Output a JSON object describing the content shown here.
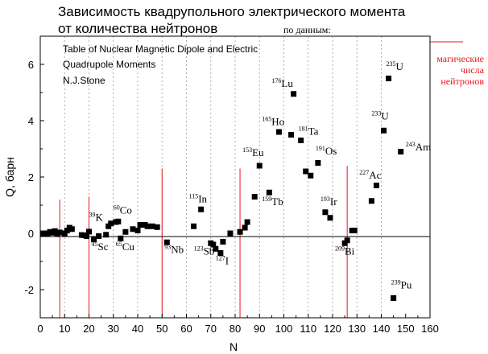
{
  "chart_data": {
    "type": "scatter",
    "title_lines": [
      "Зависимость квадрупольного электрического момента",
      "от количества нейтронов"
    ],
    "source_prefix": "по данным:",
    "source_lines": [
      "Table of Nuclear Magnetic Dipole and Electric",
      "Quadrupole Moments",
      "N.J.Stone"
    ],
    "xlabel": "N",
    "ylabel": "Q, барн",
    "xlim": [
      0,
      160
    ],
    "ylim": [
      -3,
      7
    ],
    "x_ticks": [
      0,
      10,
      20,
      30,
      40,
      50,
      60,
      70,
      80,
      90,
      100,
      110,
      120,
      130,
      140,
      150,
      160
    ],
    "y_ticks": [
      -2,
      0,
      2,
      4,
      6
    ],
    "grid_x": [
      10,
      20,
      30,
      40,
      50,
      60,
      70,
      80,
      90,
      100,
      110,
      120,
      130,
      140
    ],
    "magic_numbers": [
      8,
      20,
      50,
      82,
      126
    ],
    "magic_label_lines": [
      "магические",
      "числа",
      "нейтронов"
    ],
    "colors": {
      "points": "#000000",
      "magic": "#e8141e",
      "grid": "#9a9a9a",
      "text": "#000000"
    },
    "points": [
      {
        "x": 1,
        "y": 0.0
      },
      {
        "x": 2,
        "y": 0.0
      },
      {
        "x": 3,
        "y": -0.02
      },
      {
        "x": 4,
        "y": 0.05
      },
      {
        "x": 5,
        "y": 0.02
      },
      {
        "x": 6,
        "y": 0.08
      },
      {
        "x": 7,
        "y": 0.0
      },
      {
        "x": 8,
        "y": 0.03
      },
      {
        "x": 10,
        "y": 0.0
      },
      {
        "x": 11,
        "y": 0.1
      },
      {
        "x": 12,
        "y": 0.2
      },
      {
        "x": 13,
        "y": 0.15
      },
      {
        "x": 17,
        "y": -0.06
      },
      {
        "x": 18,
        "y": -0.07
      },
      {
        "x": 19,
        "y": -0.1
      },
      {
        "x": 20,
        "y": 0.06
      },
      {
        "x": 22,
        "y": -0.22
      },
      {
        "x": 24,
        "y": -0.1
      },
      {
        "x": 27,
        "y": -0.05
      },
      {
        "x": 28,
        "y": 0.25
      },
      {
        "x": 29,
        "y": 0.35
      },
      {
        "x": 31,
        "y": 0.4
      },
      {
        "x": 32,
        "y": 0.42
      },
      {
        "x": 33,
        "y": -0.18
      },
      {
        "x": 35,
        "y": 0.05
      },
      {
        "x": 38,
        "y": 0.15
      },
      {
        "x": 40,
        "y": 0.1
      },
      {
        "x": 41,
        "y": 0.3
      },
      {
        "x": 43,
        "y": 0.3
      },
      {
        "x": 44,
        "y": 0.25
      },
      {
        "x": 46,
        "y": 0.25
      },
      {
        "x": 48,
        "y": 0.22
      },
      {
        "x": 52,
        "y": -0.32
      },
      {
        "x": 63,
        "y": 0.25
      },
      {
        "x": 66,
        "y": 0.85
      },
      {
        "x": 70,
        "y": -0.35
      },
      {
        "x": 71,
        "y": -0.4
      },
      {
        "x": 72,
        "y": -0.55
      },
      {
        "x": 74,
        "y": -0.7
      },
      {
        "x": 75,
        "y": -0.3
      },
      {
        "x": 78,
        "y": 0.0
      },
      {
        "x": 82,
        "y": 0.05
      },
      {
        "x": 84,
        "y": 0.2
      },
      {
        "x": 85,
        "y": 0.4
      },
      {
        "x": 88,
        "y": 1.3
      },
      {
        "x": 90,
        "y": 2.4
      },
      {
        "x": 94,
        "y": 1.45
      },
      {
        "x": 98,
        "y": 3.6
      },
      {
        "x": 103,
        "y": 3.5
      },
      {
        "x": 104,
        "y": 4.95
      },
      {
        "x": 107,
        "y": 3.3
      },
      {
        "x": 109,
        "y": 2.2
      },
      {
        "x": 111,
        "y": 2.05
      },
      {
        "x": 114,
        "y": 2.5
      },
      {
        "x": 117,
        "y": 0.75
      },
      {
        "x": 119,
        "y": 0.55
      },
      {
        "x": 125,
        "y": -0.35
      },
      {
        "x": 126,
        "y": -0.25
      },
      {
        "x": 128,
        "y": 0.1
      },
      {
        "x": 129,
        "y": 0.1
      },
      {
        "x": 136,
        "y": 1.15
      },
      {
        "x": 138,
        "y": 1.7
      },
      {
        "x": 141,
        "y": 3.65
      },
      {
        "x": 143,
        "y": 5.5
      },
      {
        "x": 145,
        "y": -2.3
      },
      {
        "x": 148,
        "y": 2.9
      }
    ],
    "annotations": [
      {
        "mass": "39",
        "symbol": "K",
        "x": 20,
        "y": 0.45
      },
      {
        "mass": "45",
        "symbol": "Sc",
        "x": 21,
        "y": -0.6
      },
      {
        "mass": "60",
        "symbol": "Co",
        "x": 30,
        "y": 0.7
      },
      {
        "mass": "65",
        "symbol": "Cu",
        "x": 31,
        "y": -0.6
      },
      {
        "mass": "93",
        "symbol": "Nb",
        "x": 51,
        "y": -0.7
      },
      {
        "mass": "115",
        "symbol": "In",
        "x": 61,
        "y": 1.1
      },
      {
        "mass": "123",
        "symbol": "Sb",
        "x": 63,
        "y": -0.75
      },
      {
        "mass": "127",
        "symbol": "I",
        "x": 72,
        "y": -1.1
      },
      {
        "mass": "153",
        "symbol": "Eu",
        "x": 83,
        "y": 2.75
      },
      {
        "mass": "159",
        "symbol": "Tb",
        "x": 91,
        "y": 1.0
      },
      {
        "mass": "165",
        "symbol": "Ho",
        "x": 91,
        "y": 3.85
      },
      {
        "mass": "176",
        "symbol": "Lu",
        "x": 95,
        "y": 5.2
      },
      {
        "mass": "181",
        "symbol": "Ta",
        "x": 106,
        "y": 3.5
      },
      {
        "mass": "191",
        "symbol": "Os",
        "x": 113,
        "y": 2.8
      },
      {
        "mass": "193",
        "symbol": "Ir",
        "x": 115,
        "y": 1.0
      },
      {
        "mass": "209",
        "symbol": "Bi",
        "x": 121,
        "y": -0.75
      },
      {
        "mass": "227",
        "symbol": "Ac",
        "x": 131,
        "y": 1.95
      },
      {
        "mass": "233",
        "symbol": "U",
        "x": 136,
        "y": 4.05
      },
      {
        "mass": "235",
        "symbol": "U",
        "x": 142,
        "y": 5.8
      },
      {
        "mass": "239",
        "symbol": "Pu",
        "x": 144,
        "y": -1.95
      },
      {
        "mass": "243",
        "symbol": "Am",
        "x": 150,
        "y": 2.95
      }
    ]
  }
}
